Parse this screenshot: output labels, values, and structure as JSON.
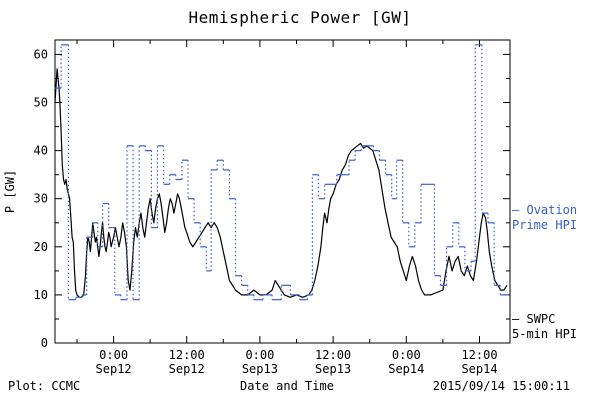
{
  "title": "Hemispheric Power [GW]",
  "footer": {
    "left": "Plot: CCMC",
    "xlabel": "Date and Time",
    "timestamp": "2015/09/14 15:00:11"
  },
  "legend": {
    "ovation": {
      "dash": "–",
      "line1": "Ovation",
      "line2": "Prime HPI",
      "color": "#3a5fcd"
    },
    "swpc": {
      "dash": "—",
      "line1": "SWPC",
      "line2": "5-min HPI",
      "color": "#000000"
    }
  },
  "chart_data": {
    "type": "line",
    "title": "Hemispheric Power [GW]",
    "xlabel": "Date and Time",
    "ylabel": "P [GW]",
    "x_unit": "hours since 2015-09-12 00:00 UT",
    "xlim": [
      -9.6,
      65
    ],
    "ylim": [
      0,
      63
    ],
    "grid": false,
    "y_ticks": [
      0,
      10,
      20,
      30,
      40,
      50,
      60
    ],
    "x_ticks": [
      {
        "t": 0,
        "time": "0:00",
        "date": "Sep12"
      },
      {
        "t": 12,
        "time": "12:00",
        "date": "Sep12"
      },
      {
        "t": 24,
        "time": "0:00",
        "date": "Sep13"
      },
      {
        "t": 36,
        "time": "12:00",
        "date": "Sep13"
      },
      {
        "t": 48,
        "time": "0:00",
        "date": "Sep14"
      },
      {
        "t": 60,
        "time": "12:00",
        "date": "Sep14"
      }
    ],
    "series": [
      {
        "name": "SWPC 5-min HPI",
        "color": "#000000",
        "style": "line",
        "points": [
          [
            -9.6,
            50
          ],
          [
            -9.4,
            54
          ],
          [
            -9.25,
            57
          ],
          [
            -9.1,
            55
          ],
          [
            -8.95,
            53
          ],
          [
            -8.8,
            50
          ],
          [
            -8.6,
            44
          ],
          [
            -8.4,
            37
          ],
          [
            -8.2,
            34
          ],
          [
            -8.0,
            33
          ],
          [
            -7.8,
            34
          ],
          [
            -7.6,
            32
          ],
          [
            -7.4,
            31
          ],
          [
            -7.2,
            30
          ],
          [
            -7.0,
            26
          ],
          [
            -6.8,
            22
          ],
          [
            -6.6,
            21
          ],
          [
            -6.4,
            15
          ],
          [
            -6.2,
            11
          ],
          [
            -6.0,
            10
          ],
          [
            -5.6,
            9.5
          ],
          [
            -5.2,
            9.5
          ],
          [
            -4.9,
            10
          ],
          [
            -4.6,
            14
          ],
          [
            -4.4,
            19
          ],
          [
            -4.2,
            22
          ],
          [
            -4.0,
            21
          ],
          [
            -3.8,
            19
          ],
          [
            -3.6,
            22
          ],
          [
            -3.4,
            25
          ],
          [
            -3.2,
            23
          ],
          [
            -3.0,
            21
          ],
          [
            -2.8,
            22
          ],
          [
            -2.6,
            20
          ],
          [
            -2.4,
            18
          ],
          [
            -2.2,
            20
          ],
          [
            -2.0,
            23
          ],
          [
            -1.8,
            25
          ],
          [
            -1.6,
            22
          ],
          [
            -1.4,
            20
          ],
          [
            -1.2,
            19
          ],
          [
            -1.0,
            21
          ],
          [
            -0.8,
            23
          ],
          [
            -0.6,
            22
          ],
          [
            -0.4,
            20
          ],
          [
            -0.2,
            21
          ],
          [
            0,
            22
          ],
          [
            0.3,
            24
          ],
          [
            0.6,
            22
          ],
          [
            0.9,
            20
          ],
          [
            1.2,
            22
          ],
          [
            1.5,
            25
          ],
          [
            1.8,
            23
          ],
          [
            2.1,
            20
          ],
          [
            2.4,
            13
          ],
          [
            2.7,
            11
          ],
          [
            3.0,
            15
          ],
          [
            3.3,
            21
          ],
          [
            3.6,
            24
          ],
          [
            3.9,
            22
          ],
          [
            4.2,
            25
          ],
          [
            4.5,
            27
          ],
          [
            4.8,
            24
          ],
          [
            5.1,
            22
          ],
          [
            5.4,
            25
          ],
          [
            5.7,
            28
          ],
          [
            6.0,
            30
          ],
          [
            6.3,
            27
          ],
          [
            6.6,
            25
          ],
          [
            6.9,
            28
          ],
          [
            7.2,
            30
          ],
          [
            7.5,
            31
          ],
          [
            7.8,
            29
          ],
          [
            8.1,
            26
          ],
          [
            8.4,
            23
          ],
          [
            8.7,
            25
          ],
          [
            9.0,
            28
          ],
          [
            9.3,
            30
          ],
          [
            9.6,
            29
          ],
          [
            9.9,
            27
          ],
          [
            10.2,
            29
          ],
          [
            10.5,
            31
          ],
          [
            10.8,
            30
          ],
          [
            11.1,
            28
          ],
          [
            11.4,
            26
          ],
          [
            11.7,
            24
          ],
          [
            12.0,
            23
          ],
          [
            12.5,
            21
          ],
          [
            13.0,
            20
          ],
          [
            13.5,
            21
          ],
          [
            14.0,
            22
          ],
          [
            14.5,
            23
          ],
          [
            15.0,
            24
          ],
          [
            15.5,
            25
          ],
          [
            16.0,
            24
          ],
          [
            16.5,
            25
          ],
          [
            17.0,
            24
          ],
          [
            17.5,
            22
          ],
          [
            18.0,
            19
          ],
          [
            18.5,
            16
          ],
          [
            19.0,
            13
          ],
          [
            19.5,
            12
          ],
          [
            20.0,
            11
          ],
          [
            21,
            10
          ],
          [
            22,
            10
          ],
          [
            23,
            11
          ],
          [
            24,
            10
          ],
          [
            25,
            10
          ],
          [
            26,
            11
          ],
          [
            26.5,
            13
          ],
          [
            27,
            12
          ],
          [
            28,
            10
          ],
          [
            29,
            9.5
          ],
          [
            30,
            10
          ],
          [
            31,
            9.5
          ],
          [
            32,
            10
          ],
          [
            32.5,
            11
          ],
          [
            33,
            13
          ],
          [
            33.5,
            16
          ],
          [
            34,
            20
          ],
          [
            34.3,
            24
          ],
          [
            34.6,
            27
          ],
          [
            35,
            25
          ],
          [
            35.3,
            28
          ],
          [
            35.6,
            30
          ],
          [
            36,
            31
          ],
          [
            36.5,
            33
          ],
          [
            37,
            34
          ],
          [
            37.5,
            36
          ],
          [
            38,
            37
          ],
          [
            38.5,
            39
          ],
          [
            39,
            40
          ],
          [
            39.5,
            40.5
          ],
          [
            40,
            41
          ],
          [
            40.5,
            41.5
          ],
          [
            41,
            40.5
          ],
          [
            41.5,
            41
          ],
          [
            42,
            40.5
          ],
          [
            42.5,
            40
          ],
          [
            43,
            38
          ],
          [
            43.5,
            36
          ],
          [
            44,
            32
          ],
          [
            44.5,
            28
          ],
          [
            45,
            25
          ],
          [
            45.5,
            22
          ],
          [
            46,
            21
          ],
          [
            46.5,
            20
          ],
          [
            47,
            17
          ],
          [
            47.5,
            15
          ],
          [
            48,
            13
          ],
          [
            48.5,
            16
          ],
          [
            49,
            18
          ],
          [
            49.5,
            16
          ],
          [
            50,
            13
          ],
          [
            50.5,
            11
          ],
          [
            51,
            10
          ],
          [
            52,
            10
          ],
          [
            53,
            10.5
          ],
          [
            54,
            11
          ],
          [
            54.5,
            15
          ],
          [
            55,
            18
          ],
          [
            55.5,
            15
          ],
          [
            56,
            17
          ],
          [
            56.5,
            18
          ],
          [
            57,
            15
          ],
          [
            57.5,
            14
          ],
          [
            58,
            16
          ],
          [
            58.5,
            14
          ],
          [
            59,
            13
          ],
          [
            59.5,
            17
          ],
          [
            60,
            22
          ],
          [
            60.3,
            25
          ],
          [
            60.6,
            27
          ],
          [
            61,
            26
          ],
          [
            61.3,
            23
          ],
          [
            61.6,
            19
          ],
          [
            62,
            16
          ],
          [
            62.5,
            13
          ],
          [
            63,
            12
          ],
          [
            63.5,
            11
          ],
          [
            64,
            11
          ],
          [
            64.5,
            12
          ]
        ]
      },
      {
        "name": "Ovation Prime HPI",
        "color": "#3a5fcd",
        "style": "step",
        "end": 64.8,
        "points": [
          [
            -9.6,
            53
          ],
          [
            -8.6,
            62
          ],
          [
            -7.4,
            9
          ],
          [
            -6.2,
            9.5
          ],
          [
            -5.2,
            10
          ],
          [
            -4.4,
            22
          ],
          [
            -3.4,
            25
          ],
          [
            -2.6,
            20
          ],
          [
            -1.8,
            29
          ],
          [
            -0.8,
            24
          ],
          [
            0.2,
            10
          ],
          [
            1.2,
            9
          ],
          [
            2.2,
            41
          ],
          [
            3.2,
            9
          ],
          [
            4.2,
            41
          ],
          [
            5.2,
            40
          ],
          [
            6.2,
            24
          ],
          [
            7.2,
            41
          ],
          [
            8.2,
            33
          ],
          [
            9.2,
            35
          ],
          [
            10.2,
            34
          ],
          [
            11.2,
            38
          ],
          [
            12.2,
            30
          ],
          [
            13.2,
            25
          ],
          [
            14.2,
            20
          ],
          [
            15.2,
            15
          ],
          [
            16.0,
            36
          ],
          [
            17.0,
            38
          ],
          [
            18.0,
            36
          ],
          [
            19.0,
            30
          ],
          [
            20.0,
            14
          ],
          [
            21.0,
            12
          ],
          [
            22.0,
            10
          ],
          [
            23.0,
            9
          ],
          [
            24.5,
            10
          ],
          [
            26.0,
            9
          ],
          [
            27.5,
            12
          ],
          [
            29.0,
            10
          ],
          [
            30.5,
            9
          ],
          [
            31.8,
            10
          ],
          [
            32.6,
            35
          ],
          [
            33.6,
            30
          ],
          [
            34.6,
            33
          ],
          [
            35.6,
            33
          ],
          [
            36.6,
            35
          ],
          [
            37.6,
            35
          ],
          [
            38.6,
            38
          ],
          [
            39.6,
            40
          ],
          [
            40.6,
            41
          ],
          [
            41.6,
            41
          ],
          [
            42.6,
            40
          ],
          [
            43.6,
            38
          ],
          [
            44.6,
            35
          ],
          [
            45.6,
            30
          ],
          [
            46.4,
            38
          ],
          [
            47.4,
            25
          ],
          [
            48.4,
            20
          ],
          [
            49.4,
            25
          ],
          [
            50.4,
            33
          ],
          [
            51.6,
            33
          ],
          [
            52.6,
            14
          ],
          [
            53.6,
            12
          ],
          [
            54.6,
            20
          ],
          [
            55.6,
            25
          ],
          [
            56.6,
            20
          ],
          [
            57.6,
            15
          ],
          [
            58.6,
            17
          ],
          [
            59.3,
            62
          ],
          [
            60.4,
            27
          ],
          [
            61.4,
            25
          ],
          [
            62.4,
            12
          ],
          [
            63.4,
            10
          ]
        ]
      }
    ]
  }
}
